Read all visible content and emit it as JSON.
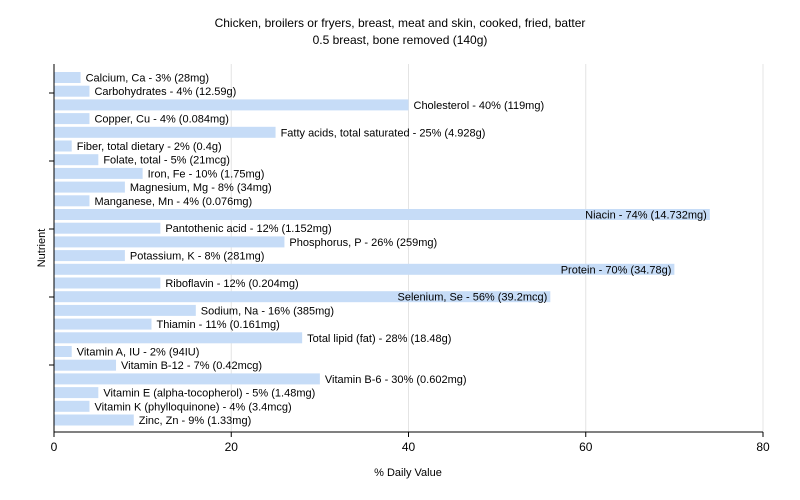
{
  "chart_data": {
    "type": "bar",
    "orientation": "horizontal",
    "title": "Chicken, broilers or fryers, breast, meat and skin, cooked, fried, batter",
    "subtitle": "0.5 breast, bone removed (140g)",
    "xlabel": "% Daily Value",
    "ylabel": "Nutrient",
    "xlim": [
      0,
      80
    ],
    "xticks": [
      0,
      20,
      40,
      60,
      80
    ],
    "grid": true,
    "bar_color": "#c6dcf7",
    "categories": [
      "Calcium, Ca",
      "Carbohydrates",
      "Cholesterol",
      "Copper, Cu",
      "Fatty acids, total saturated",
      "Fiber, total dietary",
      "Folate, total",
      "Iron, Fe",
      "Magnesium, Mg",
      "Manganese, Mn",
      "Niacin",
      "Pantothenic acid",
      "Phosphorus, P",
      "Potassium, K",
      "Protein",
      "Riboflavin",
      "Selenium, Se",
      "Sodium, Na",
      "Thiamin",
      "Total lipid (fat)",
      "Vitamin A, IU",
      "Vitamin B-12",
      "Vitamin B-6",
      "Vitamin E (alpha-tocopherol)",
      "Vitamin K (phylloquinone)",
      "Zinc, Zn"
    ],
    "values": [
      3,
      4,
      40,
      4,
      25,
      2,
      5,
      10,
      8,
      4,
      74,
      12,
      26,
      8,
      70,
      12,
      56,
      16,
      11,
      28,
      2,
      7,
      30,
      5,
      4,
      9
    ],
    "labels": [
      "Calcium, Ca - 3% (28mg)",
      "Carbohydrates - 4% (12.59g)",
      "Cholesterol - 40% (119mg)",
      "Copper, Cu - 4% (0.084mg)",
      "Fatty acids, total saturated - 25% (4.928g)",
      "Fiber, total dietary - 2% (0.4g)",
      "Folate, total - 5% (21mcg)",
      "Iron, Fe - 10% (1.75mg)",
      "Magnesium, Mg - 8% (34mg)",
      "Manganese, Mn - 4% (0.076mg)",
      "Niacin - 74% (14.732mg)",
      "Pantothenic acid - 12% (1.152mg)",
      "Phosphorus, P - 26% (259mg)",
      "Potassium, K - 8% (281mg)",
      "Protein - 70% (34.78g)",
      "Riboflavin - 12% (0.204mg)",
      "Selenium, Se - 56% (39.2mcg)",
      "Sodium, Na - 16% (385mg)",
      "Thiamin - 11% (0.161mg)",
      "Total lipid (fat) - 28% (18.48g)",
      "Vitamin A, IU - 2% (94IU)",
      "Vitamin B-12 - 7% (0.42mcg)",
      "Vitamin B-6 - 30% (0.602mg)",
      "Vitamin E (alpha-tocopherol) - 5% (1.48mg)",
      "Vitamin K (phylloquinone) - 4% (3.4mcg)",
      "Zinc, Zn - 9% (1.33mg)"
    ]
  }
}
